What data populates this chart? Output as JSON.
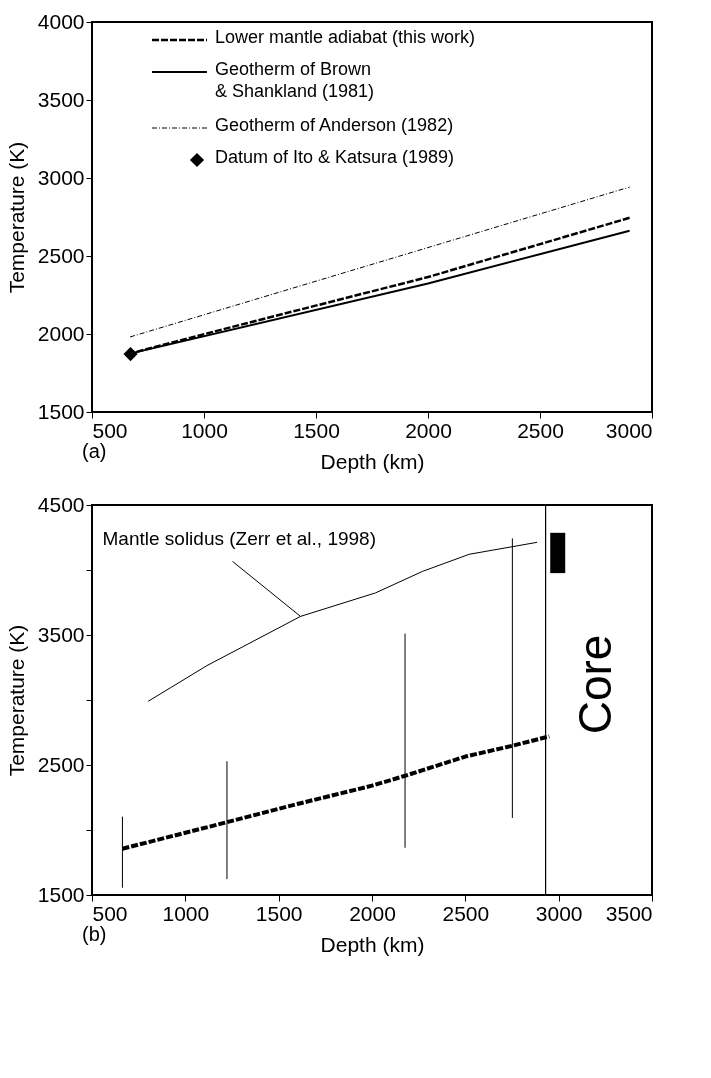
{
  "chart_data": [
    {
      "type": "line",
      "xlabel": "Depth (km)",
      "ylabel": "Temperature (K)",
      "xlim": [
        500,
        3000
      ],
      "xticks": [
        500,
        1000,
        1500,
        2000,
        2500,
        3000
      ],
      "ylim": [
        1500,
        4000
      ],
      "yticks": [
        1500,
        2000,
        2500,
        3000,
        3500,
        4000
      ],
      "legend": "top",
      "annotations": [
        "(a)"
      ],
      "series": [
        {
          "name": "Lower mantle adiabat (this work)",
          "color": "#000000",
          "line_style": "dashed",
          "x": [
            660,
            1100,
            2000,
            2900
          ],
          "values": [
            1871,
            2036,
            2365,
            2745
          ]
        },
        {
          "name": "Geotherm of Brown\n& Shankland (1981)",
          "color": "#000000",
          "line_style": "solid",
          "x": [
            660,
            2000,
            2900
          ],
          "values": [
            1871,
            2324,
            2662
          ]
        },
        {
          "name": "Geotherm of Anderson (1982)",
          "color": "#000000",
          "line_style": "dashdot",
          "x": [
            670,
            2900
          ],
          "values": [
            1981,
            2942
          ]
        },
        {
          "name": "Datum of Ito & Katsura (1989)",
          "type": "scatter",
          "marker": "diamond",
          "color": "#000000",
          "x": [
            672
          ],
          "values": [
            1871
          ]
        }
      ]
    },
    {
      "type": "line",
      "xlabel": "Depth (km)",
      "ylabel": "Temperature (K)",
      "xlim": [
        500,
        3500
      ],
      "xticks": [
        500,
        1000,
        1500,
        2000,
        2500,
        3000,
        3500
      ],
      "ylim": [
        1500,
        4500
      ],
      "yticks": [
        1500,
        {
          "value": 2000,
          "label": null
        },
        2500,
        {
          "value": 3000,
          "label": null
        },
        3500,
        {
          "value": 4000,
          "label": null
        },
        4500
      ],
      "annotations": [
        "(b)",
        {
          "text": "Mantle solidus (Zerr et al., 1998)",
          "x": 1617,
          "y": 3643
        },
        "Core"
      ],
      "ref_lines": [
        {
          "axis": "x",
          "value": 2930,
          "color": "#000000"
        }
      ],
      "series": [
        {
          "color": "#000000",
          "line_style": "dashed",
          "x": [
            663,
            1223,
            1600,
            2000,
            2177,
            2500,
            2752,
            2950
          ],
          "values": [
            1856,
            2060,
            2200,
            2341,
            2417,
            2565,
            2648,
            2720
          ],
          "errors": [
            [
              1556,
              2103
            ],
            [
              1622,
              2529
            ],
            null,
            null,
            [
              1863,
              3511
            ],
            null,
            [
              2093,
              4243
            ],
            null
          ]
        },
        {
          "color": "#000000",
          "line_style": "solid",
          "x": [
            801,
            1115,
            1617,
            2019,
            2270,
            2521,
            2885
          ],
          "values": [
            2990,
            3264,
            3643,
            3824,
            3989,
            4121,
            4213
          ]
        },
        {
          "type": "bar",
          "color": "#000000",
          "x": [
            2995
          ],
          "base": [
            3976
          ],
          "values": [
            310
          ]
        }
      ]
    }
  ]
}
